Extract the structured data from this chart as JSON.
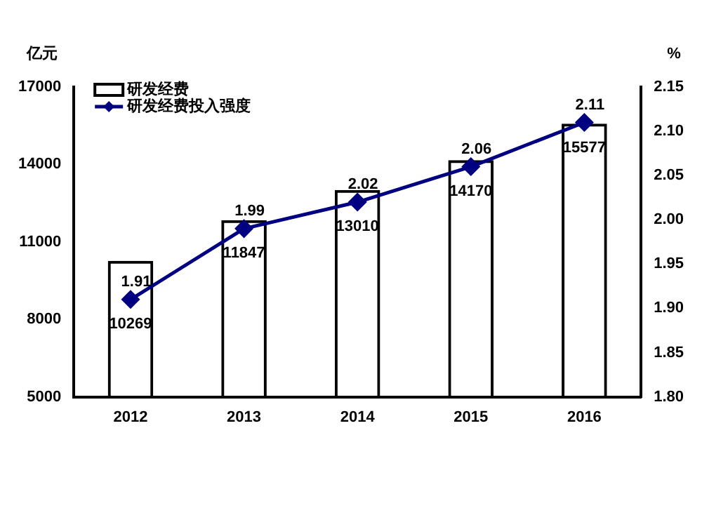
{
  "chart_data": {
    "type": "bar",
    "categories": [
      "2012",
      "2013",
      "2014",
      "2015",
      "2016"
    ],
    "ylabel": "亿元",
    "y2label": "%",
    "series": [
      {
        "name": "研发经费",
        "color": "#000000",
        "values": [
          10269,
          11847,
          13010,
          14170,
          15577
        ]
      },
      {
        "name": "研发经费投入强度",
        "type": "line",
        "axis": "y2",
        "color": "#000080",
        "values": [
          1.91,
          1.99,
          2.02,
          2.06,
          2.11
        ]
      }
    ],
    "ylim": [
      5000,
      17000
    ],
    "yticks": [
      5000,
      8000,
      11000,
      14000,
      17000
    ],
    "y2lim": [
      1.8,
      2.15
    ],
    "y2ticks": [
      {
        "value": 1.8,
        "label": "1.80"
      },
      {
        "value": 1.85,
        "label": "1.85"
      },
      {
        "value": 1.9,
        "label": "1.90"
      },
      {
        "value": 1.95,
        "label": "1.95"
      },
      {
        "value": 2.0,
        "label": "2.00"
      },
      {
        "value": 2.05,
        "label": "2.05"
      },
      {
        "value": 2.1,
        "label": "2.10"
      },
      {
        "value": 2.15,
        "label": "2.15"
      }
    ],
    "data_labels": true,
    "legend": "top left",
    "grid": false,
    "marker": "diamond"
  }
}
